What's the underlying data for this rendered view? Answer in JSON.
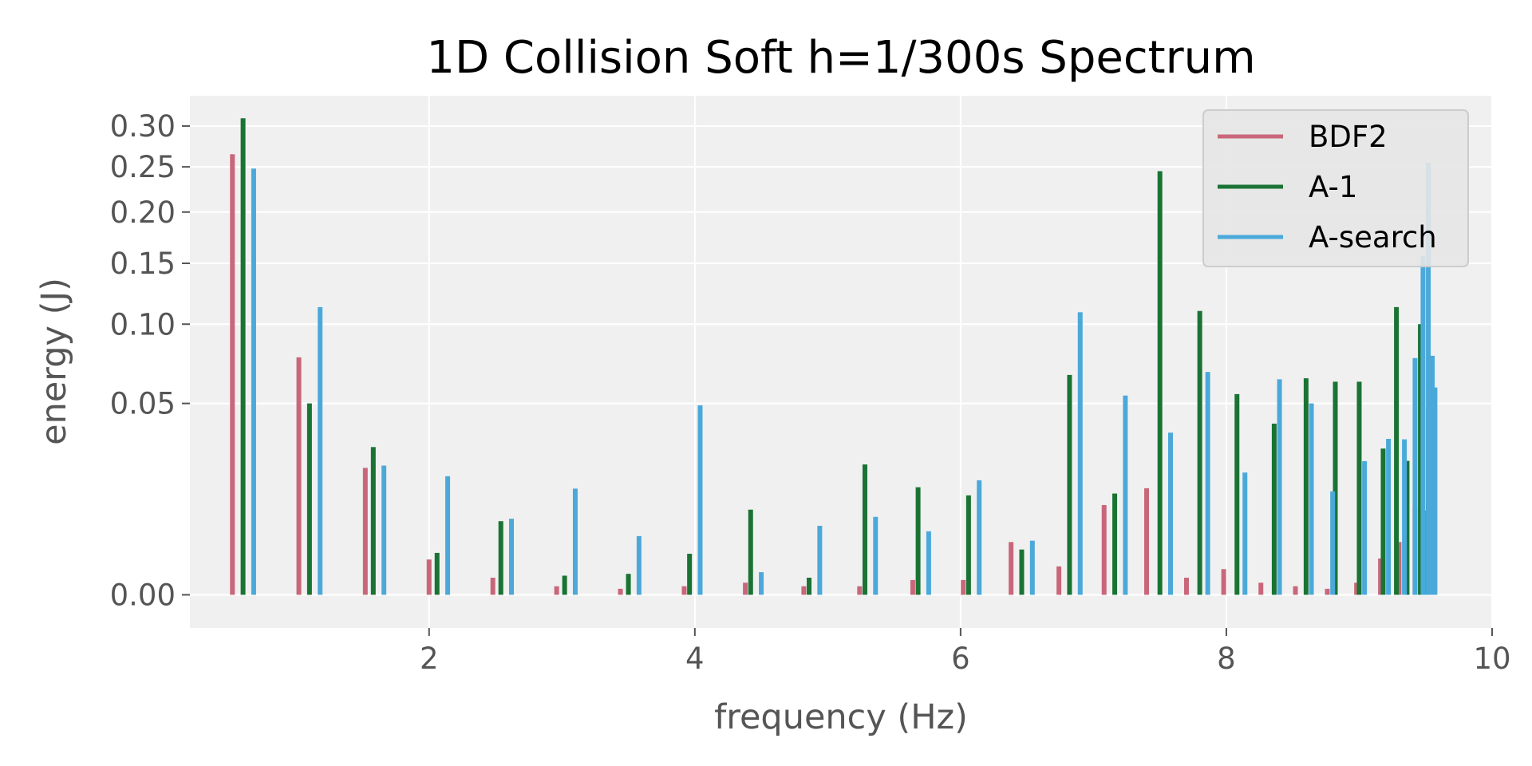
{
  "chart_data": {
    "type": "bar",
    "title": "1D Collision Soft h=1/300s Spectrum",
    "xlabel": "frequency (Hz)",
    "ylabel": "energy (J)",
    "xlim": [
      0.2,
      10
    ],
    "y_scale": "sqrt",
    "ylim": [
      -0.0015,
      0.34
    ],
    "x_ticks": [
      {
        "value": 2,
        "label": "2"
      },
      {
        "value": 4,
        "label": "4"
      },
      {
        "value": 6,
        "label": "6"
      },
      {
        "value": 8,
        "label": "8"
      },
      {
        "value": 10,
        "label": "10"
      }
    ],
    "y_ticks": [
      {
        "value": 0.0,
        "label": "0.00"
      },
      {
        "value": 0.05,
        "label": "0.05"
      },
      {
        "value": 0.1,
        "label": "0.10"
      },
      {
        "value": 0.15,
        "label": "0.15"
      },
      {
        "value": 0.2,
        "label": "0.20"
      },
      {
        "value": 0.25,
        "label": "0.25"
      },
      {
        "value": 0.3,
        "label": "0.30"
      }
    ],
    "grid": true,
    "legend_position": "top-right",
    "series": [
      {
        "name": "BDF2",
        "color": "#c9677a",
        "x": [
          0.52,
          1.02,
          1.52,
          2.0,
          2.48,
          2.96,
          3.44,
          3.92,
          4.38,
          4.82,
          5.24,
          5.64,
          6.02,
          6.38,
          6.74,
          7.08,
          7.4,
          7.7,
          7.98,
          8.26,
          8.52,
          8.76,
          8.98,
          9.16,
          9.3,
          9.42,
          9.49,
          9.54
        ],
        "values": [
          0.265,
          0.077,
          0.022,
          0.0017,
          0.0004,
          0.0001,
          5e-05,
          0.0001,
          0.0002,
          0.0001,
          0.0001,
          0.0003,
          0.0003,
          0.0038,
          0.0011,
          0.011,
          0.0155,
          0.0004,
          0.0009,
          0.0002,
          0.0001,
          5e-05,
          0.0002,
          0.0018,
          0.0038,
          0.0104,
          0.0097,
          0.0023
        ]
      },
      {
        "name": "A-1",
        "color": "#1a7333",
        "x": [
          0.6,
          1.1,
          1.58,
          2.06,
          2.54,
          3.02,
          3.5,
          3.96,
          4.42,
          4.86,
          5.28,
          5.68,
          6.06,
          6.46,
          6.82,
          7.16,
          7.5,
          7.8,
          8.08,
          8.36,
          8.6,
          8.82,
          9.0,
          9.18,
          9.28,
          9.36,
          9.46,
          9.52
        ],
        "values": [
          0.31,
          0.05,
          0.0298,
          0.0024,
          0.0074,
          0.0005,
          0.0006,
          0.0023,
          0.0099,
          0.0004,
          0.0232,
          0.0158,
          0.0135,
          0.0028,
          0.066,
          0.014,
          0.245,
          0.11,
          0.055,
          0.04,
          0.064,
          0.062,
          0.062,
          0.0292,
          0.113,
          0.0245,
          0.1,
          0.047
        ]
      },
      {
        "name": "A-search",
        "color": "#4ba9da",
        "x": [
          0.68,
          1.18,
          1.66,
          2.14,
          2.62,
          3.1,
          3.58,
          4.04,
          4.5,
          4.94,
          5.36,
          5.76,
          6.14,
          6.54,
          6.9,
          7.24,
          7.58,
          7.86,
          8.14,
          8.4,
          8.64,
          8.8,
          9.04,
          9.22,
          9.34,
          9.42,
          9.48,
          9.52,
          9.55,
          9.57
        ],
        "values": [
          0.248,
          0.113,
          0.0228,
          0.0192,
          0.0079,
          0.0154,
          0.0047,
          0.049,
          0.0007,
          0.0065,
          0.0083,
          0.0055,
          0.0179,
          0.004,
          0.109,
          0.0542,
          0.0359,
          0.0678,
          0.0204,
          0.0634,
          0.05,
          0.0146,
          0.0244,
          0.0332,
          0.033,
          0.0765,
          0.157,
          0.255,
          0.078,
          0.0587
        ]
      }
    ]
  }
}
